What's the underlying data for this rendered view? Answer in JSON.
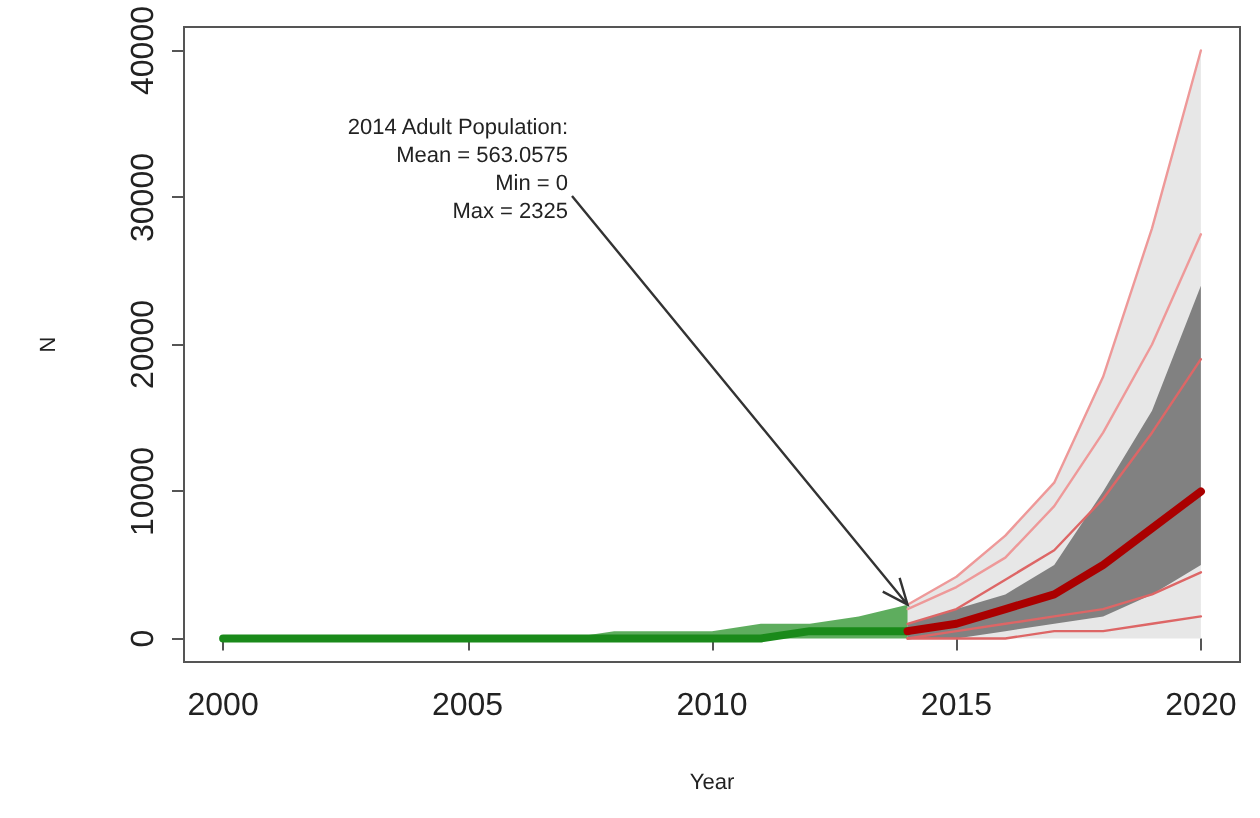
{
  "chart_data": {
    "type": "line",
    "xlabel": "Year",
    "ylabel": "N",
    "xlim": [
      1999.2,
      2020.8
    ],
    "xticks": [
      2000,
      2005,
      2010,
      2015,
      2020
    ],
    "ylim": [
      -1600,
      41600
    ],
    "yticks": [
      0,
      10000,
      20000,
      30000,
      40000
    ],
    "grid": false,
    "marker": "none",
    "line_style": "solid",
    "annotations": [
      {
        "text": "2014 Adult Population:\nMean = 563.0575\nMin = 0\nMax = 2325",
        "x": 2014,
        "y": 2300
      }
    ],
    "series": [
      {
        "color": "#dddddd",
        "x": [
          2014,
          2015,
          2016,
          2017,
          2018,
          2019,
          2020
        ],
        "values": [
          null,
          null,
          null,
          null,
          null,
          null,
          null
        ],
        "lower": [
          0,
          0,
          0,
          0,
          0,
          0,
          0
        ],
        "upper": [
          2300,
          4200,
          7000,
          10600,
          17800,
          27900,
          40000
        ]
      },
      {
        "color": "#555555",
        "x": [
          2014,
          2015,
          2016,
          2017,
          2018,
          2019,
          2020
        ],
        "values": [
          null,
          null,
          null,
          null,
          null,
          null,
          null
        ],
        "lower": [
          0,
          0,
          500,
          1000,
          1500,
          3000,
          5000
        ],
        "upper": [
          1000,
          2000,
          3000,
          5000,
          10000,
          15500,
          24000
        ]
      },
      {
        "color": "#ee9999",
        "x": [
          2014,
          2015,
          2016,
          2017,
          2018,
          2019,
          2020
        ],
        "values": [
          2300,
          4200,
          7000,
          10600,
          17800,
          27900,
          40000
        ]
      },
      {
        "color": "#ee9999",
        "x": [
          2014,
          2015,
          2016,
          2017,
          2018,
          2019,
          2020
        ],
        "values": [
          2000,
          3500,
          5500,
          9000,
          14000,
          20000,
          27500
        ]
      },
      {
        "color": "#dd6666",
        "x": [
          2014,
          2015,
          2016,
          2017,
          2018,
          2019,
          2020
        ],
        "values": [
          1000,
          2000,
          4000,
          6000,
          9500,
          14000,
          19000
        ]
      },
      {
        "color": "#dd6666",
        "x": [
          2014,
          2015,
          2016,
          2017,
          2018,
          2019,
          2020
        ],
        "values": [
          0,
          500,
          1000,
          1500,
          2000,
          3000,
          4500
        ]
      },
      {
        "color": "#dd6666",
        "x": [
          2014,
          2015,
          2016,
          2017,
          2018,
          2019,
          2020
        ],
        "values": [
          0,
          0,
          0,
          500,
          500,
          1000,
          1500
        ]
      },
      {
        "color": "#1a8a1a",
        "x": [
          2000,
          2001,
          2002,
          2003,
          2004,
          2005,
          2006,
          2007,
          2008,
          2009,
          2010,
          2011,
          2012,
          2013,
          2014
        ],
        "values": [
          0,
          0,
          0,
          0,
          0,
          0,
          0,
          0,
          0,
          0,
          0,
          0,
          500,
          500,
          500
        ],
        "lower": [
          0,
          0,
          0,
          0,
          0,
          0,
          0,
          0,
          0,
          0,
          0,
          0,
          0,
          0,
          0
        ],
        "upper": [
          0,
          0,
          0,
          0,
          0,
          0,
          0,
          0,
          500,
          500,
          500,
          1000,
          1000,
          1500,
          2300
        ]
      },
      {
        "color": "#aa0000",
        "x": [
          2014,
          2015,
          2016,
          2017,
          2018,
          2019,
          2020
        ],
        "values": [
          500,
          1000,
          2000,
          3000,
          5000,
          7500,
          10000
        ]
      }
    ]
  }
}
